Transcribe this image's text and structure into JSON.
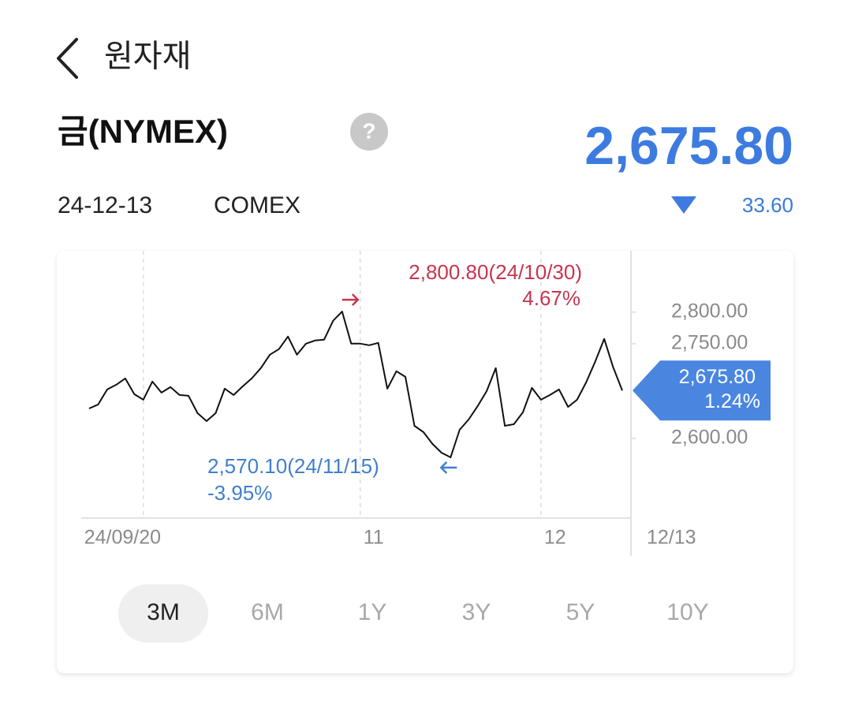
{
  "header": {
    "title": "원자재"
  },
  "instrument": {
    "name": "금(NYMEX)",
    "price": "2,675.80",
    "date": "24-12-13",
    "exchange": "COMEX",
    "change": "33.60"
  },
  "chart_data": {
    "type": "line",
    "categories": [
      null,
      null,
      null,
      null,
      null,
      null,
      "24/09/20",
      null,
      null,
      null,
      null,
      null,
      null,
      null,
      null,
      null,
      null,
      null,
      null,
      null,
      null,
      null,
      null,
      null,
      null,
      null,
      null,
      null,
      null,
      null,
      "11",
      null,
      null,
      null,
      null,
      null,
      null,
      null,
      null,
      null,
      null,
      null,
      null,
      null,
      null,
      null,
      null,
      null,
      null,
      null,
      "12",
      null,
      null,
      null,
      null,
      null,
      null,
      null,
      null,
      "12/13"
    ],
    "series": [
      {
        "color": "#111111",
        "values": [
          2647.5,
          2653.8,
          2677.5,
          2685,
          2695,
          2670,
          2661.3,
          2690,
          2672.5,
          2681.3,
          2668.8,
          2667.5,
          2640,
          2627.5,
          2640,
          2678.8,
          2668.8,
          2682.5,
          2695,
          2711.3,
          2732.5,
          2741.3,
          2761.3,
          2732.5,
          2750,
          2755,
          2756.3,
          2786.3,
          2800.8,
          2750,
          2750,
          2747.5,
          2751.3,
          2678.8,
          2706.3,
          2697.5,
          2620,
          2610,
          2591.3,
          2577.5,
          2570.1,
          2613.8,
          2630,
          2651.3,
          2675,
          2711.3,
          2620,
          2622.5,
          2641.3,
          2680,
          2661.3,
          2668.8,
          2677.5,
          2650,
          2661.3,
          2688.8,
          2721.3,
          2757.5,
          2712.5,
          2675.8
        ]
      }
    ],
    "ylim": [
      2474,
      2897
    ],
    "yticks": [
      {
        "value": 2600,
        "label": "2,600.00"
      },
      {
        "value": 2750,
        "label": "2,750.00"
      },
      {
        "value": 2800,
        "label": "2,800.00"
      }
    ],
    "current": {
      "label": "2,675.80",
      "change": "1.24%",
      "color": "#4a86e0"
    },
    "high": {
      "label": "2,800.80(24/10/30)",
      "change": "4.67%",
      "color": "#c8354f"
    },
    "low": {
      "label": "2,570.10(24/11/15)",
      "change": "-3.95%",
      "color": "#3f7fcf"
    }
  },
  "tabs": [
    "3M",
    "6M",
    "1Y",
    "3Y",
    "5Y",
    "10Y"
  ]
}
